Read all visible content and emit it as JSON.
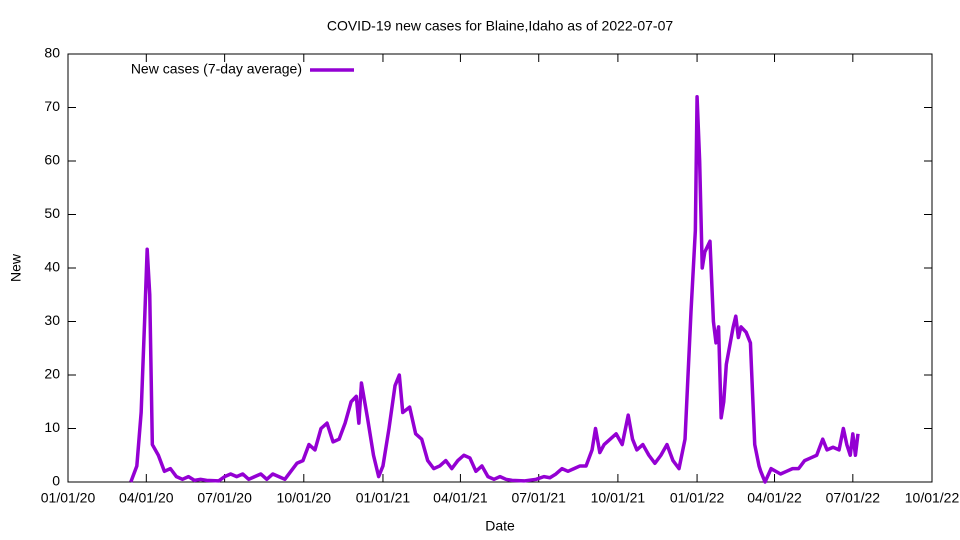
{
  "chart_data": {
    "type": "line",
    "title": "COVID-19 new cases for Blaine,Idaho as of 2022-07-07",
    "x_label": "Date",
    "y_label": "New",
    "x": [
      "2020-03-14",
      "2020-03-21",
      "2020-03-26",
      "2020-03-30",
      "2020-04-02",
      "2020-04-05",
      "2020-04-08",
      "2020-04-15",
      "2020-04-22",
      "2020-04-29",
      "2020-05-06",
      "2020-05-13",
      "2020-05-20",
      "2020-05-27",
      "2020-06-03",
      "2020-06-10",
      "2020-06-24",
      "2020-07-01",
      "2020-07-08",
      "2020-07-15",
      "2020-07-22",
      "2020-07-29",
      "2020-08-05",
      "2020-08-12",
      "2020-08-19",
      "2020-08-26",
      "2020-09-02",
      "2020-09-09",
      "2020-09-16",
      "2020-09-23",
      "2020-09-30",
      "2020-10-07",
      "2020-10-14",
      "2020-10-21",
      "2020-10-28",
      "2020-11-04",
      "2020-11-11",
      "2020-11-18",
      "2020-11-25",
      "2020-12-01",
      "2020-12-04",
      "2020-12-07",
      "2020-12-14",
      "2020-12-21",
      "2020-12-27",
      "2021-01-01",
      "2021-01-08",
      "2021-01-15",
      "2021-01-20",
      "2021-01-24",
      "2021-02-01",
      "2021-02-08",
      "2021-02-15",
      "2021-02-22",
      "2021-03-01",
      "2021-03-08",
      "2021-03-15",
      "2021-03-22",
      "2021-03-29",
      "2021-04-05",
      "2021-04-12",
      "2021-04-19",
      "2021-04-26",
      "2021-05-03",
      "2021-05-10",
      "2021-05-17",
      "2021-05-24",
      "2021-05-31",
      "2021-06-14",
      "2021-06-28",
      "2021-07-07",
      "2021-07-14",
      "2021-07-21",
      "2021-07-28",
      "2021-08-04",
      "2021-08-11",
      "2021-08-18",
      "2021-08-25",
      "2021-09-01",
      "2021-09-05",
      "2021-09-10",
      "2021-09-15",
      "2021-09-22",
      "2021-09-29",
      "2021-10-06",
      "2021-10-13",
      "2021-10-18",
      "2021-10-23",
      "2021-10-30",
      "2021-11-06",
      "2021-11-13",
      "2021-11-20",
      "2021-11-27",
      "2021-12-04",
      "2021-12-11",
      "2021-12-18",
      "2021-12-25",
      "2021-12-30",
      "2022-01-01",
      "2022-01-04",
      "2022-01-07",
      "2022-01-10",
      "2022-01-16",
      "2022-01-20",
      "2022-01-23",
      "2022-01-26",
      "2022-01-29",
      "2022-02-01",
      "2022-02-04",
      "2022-02-12",
      "2022-02-15",
      "2022-02-18",
      "2022-02-21",
      "2022-02-27",
      "2022-03-04",
      "2022-03-09",
      "2022-03-14",
      "2022-03-16",
      "2022-03-21",
      "2022-03-28",
      "2022-04-08",
      "2022-04-15",
      "2022-04-22",
      "2022-04-29",
      "2022-05-06",
      "2022-05-13",
      "2022-05-20",
      "2022-05-27",
      "2022-06-01",
      "2022-06-08",
      "2022-06-15",
      "2022-06-20",
      "2022-06-24",
      "2022-06-28",
      "2022-07-01",
      "2022-07-04",
      "2022-07-07"
    ],
    "series": [
      {
        "name": "New cases (7-day average)",
        "color": "#9400d3",
        "values": [
          0,
          3,
          13,
          30,
          43.5,
          35,
          7,
          5,
          2,
          2.5,
          1,
          0.5,
          1,
          0.3,
          0.5,
          0.3,
          0.2,
          1,
          1.5,
          1,
          1.5,
          0.5,
          1,
          1.5,
          0.5,
          1.5,
          1,
          0.5,
          2,
          3.5,
          4,
          7,
          6,
          10,
          11,
          7.5,
          8,
          11,
          15,
          16,
          11,
          18.5,
          12,
          5,
          1,
          3,
          10,
          18,
          20,
          13,
          14,
          9,
          8,
          4,
          2.5,
          3,
          4,
          2.5,
          4,
          5,
          4.5,
          2,
          3,
          1,
          0.5,
          1,
          0.5,
          0.3,
          0.2,
          0.5,
          1,
          0.8,
          1.5,
          2.5,
          2,
          2.5,
          3,
          3,
          6,
          10,
          5.5,
          7,
          8,
          9,
          7,
          12.5,
          8,
          6,
          7,
          5,
          3.5,
          5,
          7,
          4,
          2.5,
          8,
          32,
          47,
          72,
          60,
          40,
          43,
          45,
          30,
          26,
          29,
          12,
          15,
          22,
          29,
          31,
          27,
          29,
          28,
          26,
          7,
          3,
          2,
          0,
          2.5,
          1.5,
          2,
          2.5,
          2.5,
          4,
          4.5,
          5,
          8,
          6,
          6.5,
          6,
          10,
          7,
          5,
          9,
          5,
          9
        ]
      }
    ],
    "xlim": [
      "2020-01-01",
      "2022-10-01"
    ],
    "xticks": [
      {
        "value": "2020-01-01",
        "label": "01/01/20"
      },
      {
        "value": "2020-04-01",
        "label": "04/01/20"
      },
      {
        "value": "2020-07-01",
        "label": "07/01/20"
      },
      {
        "value": "2020-10-01",
        "label": "10/01/20"
      },
      {
        "value": "2021-01-01",
        "label": "01/01/21"
      },
      {
        "value": "2021-04-01",
        "label": "04/01/21"
      },
      {
        "value": "2021-07-01",
        "label": "07/01/21"
      },
      {
        "value": "2021-10-01",
        "label": "10/01/21"
      },
      {
        "value": "2022-01-01",
        "label": "01/01/22"
      },
      {
        "value": "2022-04-01",
        "label": "04/01/22"
      },
      {
        "value": "2022-07-01",
        "label": "07/01/22"
      },
      {
        "value": "2022-10-01",
        "label": "10/01/22"
      }
    ],
    "ylim": [
      0,
      80
    ],
    "yticks": [
      0,
      10,
      20,
      30,
      40,
      50,
      60,
      70,
      80
    ],
    "grid": false,
    "legend": "top-left"
  }
}
